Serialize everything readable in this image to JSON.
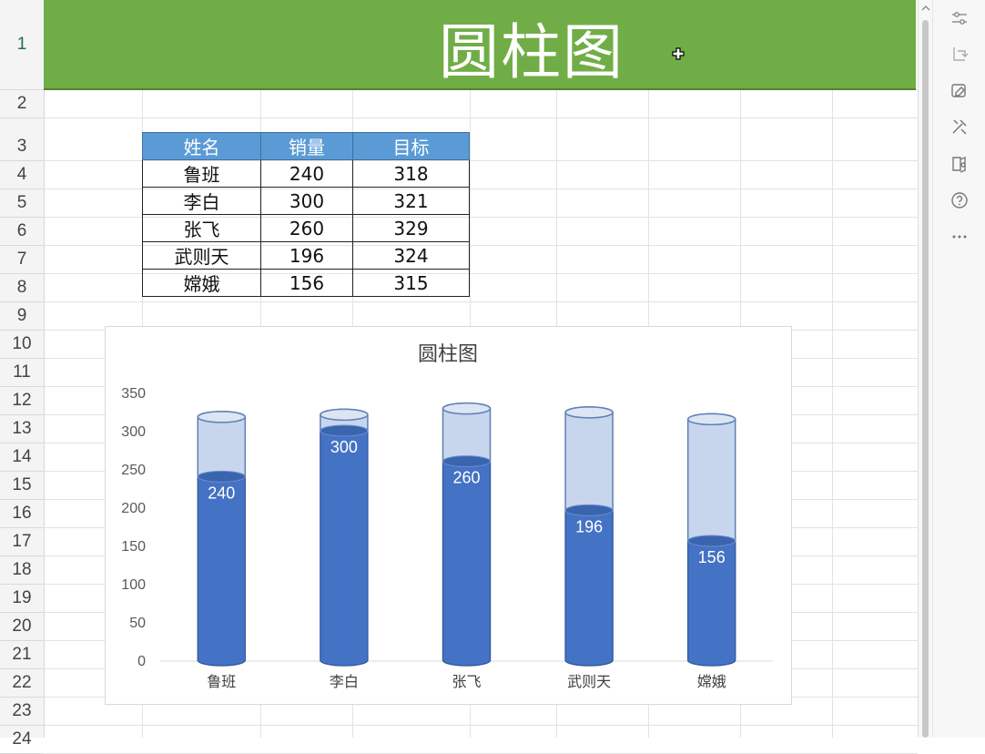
{
  "banner": {
    "title": "圆柱图"
  },
  "row_numbers": [
    "1",
    "2",
    "3",
    "4",
    "5",
    "6",
    "7",
    "8",
    "9",
    "10",
    "11",
    "12",
    "13",
    "14",
    "15",
    "16",
    "17",
    "18",
    "19",
    "20",
    "21",
    "22",
    "23",
    "24"
  ],
  "table": {
    "headers": [
      "姓名",
      "销量",
      "目标"
    ],
    "rows": [
      [
        "鲁班",
        "240",
        "318"
      ],
      [
        "李白",
        "300",
        "321"
      ],
      [
        "张飞",
        "260",
        "329"
      ],
      [
        "武则天",
        "196",
        "324"
      ],
      [
        "嫦娥",
        "156",
        "315"
      ]
    ],
    "header_color": "#5b9bd5"
  },
  "chart_data": {
    "type": "bar",
    "title": "圆柱图",
    "categories": [
      "鲁班",
      "李白",
      "张飞",
      "武则天",
      "嫦娥"
    ],
    "series": [
      {
        "name": "销量",
        "values": [
          240,
          300,
          260,
          196,
          156
        ],
        "color": "#4472c4"
      },
      {
        "name": "目标",
        "values": [
          318,
          321,
          329,
          324,
          315
        ],
        "color": "#c5d4ec"
      }
    ],
    "ylim": [
      0,
      350
    ],
    "yticks": [
      "0",
      "50",
      "100",
      "150",
      "200",
      "250",
      "300",
      "350"
    ],
    "grid": false,
    "data_labels": [
      "240",
      "300",
      "260",
      "196",
      "156"
    ]
  },
  "toolbar": {
    "icons": [
      "sliders-icon",
      "refresh-icon",
      "style-icon",
      "tools-icon",
      "book-icon",
      "help-icon",
      "more-icon"
    ]
  },
  "colors": {
    "banner": "#70ad47",
    "accent": "#4472c4"
  }
}
